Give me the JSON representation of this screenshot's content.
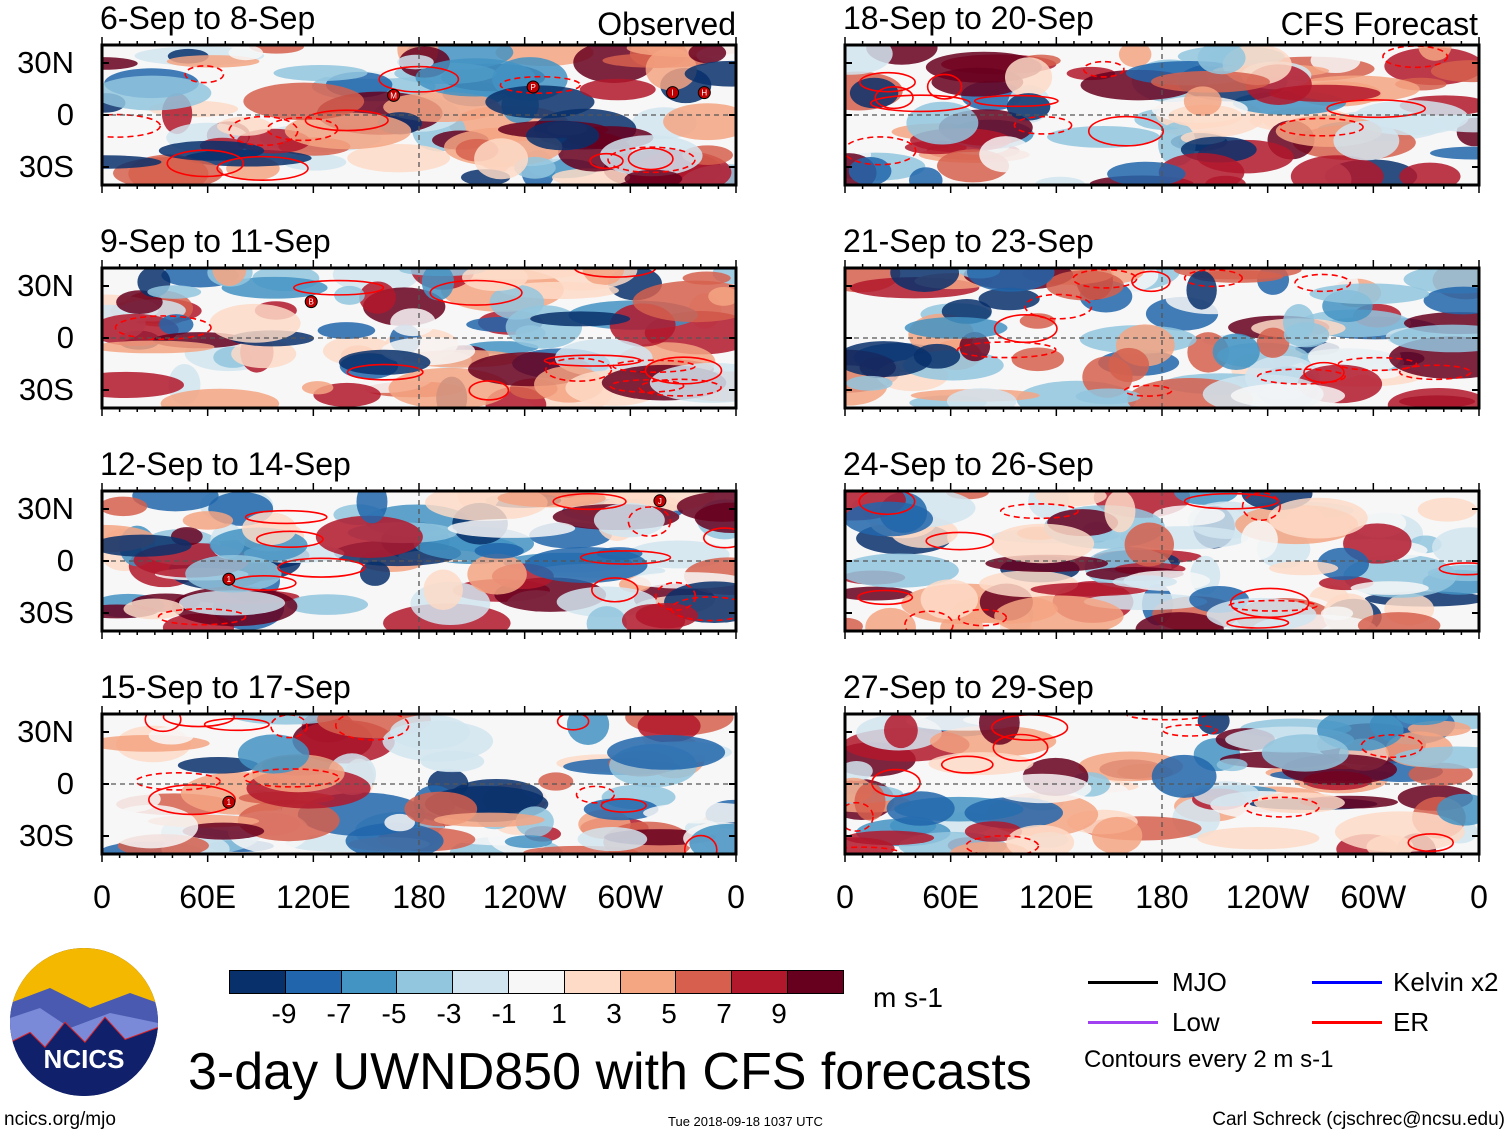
{
  "title": "3-day UWND850 with CFS forecasts",
  "header": {
    "observed_label": "Observed",
    "forecast_label": "CFS Forecast"
  },
  "footer": {
    "url": "ncics.org/mjo",
    "timestamp": "Tue 2018-09-18 1037 UTC",
    "author": "Carl Schreck (cjschrec@ncsu.edu)"
  },
  "logo": {
    "text": "NCICS"
  },
  "colorbar": {
    "units": "m s-1",
    "colors": [
      "#08306b",
      "#2166ac",
      "#4393c3",
      "#92c5de",
      "#d1e5f0",
      "#f7f7f7",
      "#fddbc7",
      "#f4a582",
      "#d6604d",
      "#b2182b",
      "#67001f"
    ],
    "labels": [
      "-9",
      "-7",
      "-5",
      "-3",
      "-1",
      "1",
      "3",
      "5",
      "7",
      "9"
    ]
  },
  "legend": {
    "items": [
      {
        "label": "MJO",
        "color": "#000000"
      },
      {
        "label": "Kelvin x2",
        "color": "#0000ff"
      },
      {
        "label": "Low",
        "color": "#a040f0"
      },
      {
        "label": "ER",
        "color": "#ff0000"
      }
    ],
    "note": "Contours every 2 m s-1"
  },
  "chart_data": {
    "type": "heatmap",
    "variable": "850-hPa zonal wind anomaly (3-day mean)",
    "units": "m s-1",
    "xlim": [
      0,
      360
    ],
    "ylim": [
      -40,
      40
    ],
    "xticks": [
      "0",
      "60E",
      "120E",
      "180",
      "120W",
      "60W",
      "0"
    ],
    "yticks": [
      "30N",
      "0",
      "30S"
    ],
    "panels": [
      {
        "title": "6-Sep to 8-Sep",
        "type": "Observed",
        "storms": [
          "M",
          "P",
          "I",
          "H"
        ]
      },
      {
        "title": "9-Sep to 11-Sep",
        "type": "Observed",
        "storms": [
          "B"
        ]
      },
      {
        "title": "12-Sep to 14-Sep",
        "type": "Observed",
        "storms": [
          "1",
          "J"
        ]
      },
      {
        "title": "15-Sep to 17-Sep",
        "type": "Observed",
        "storms": [
          "1"
        ]
      },
      {
        "title": "18-Sep to 20-Sep",
        "type": "CFS Forecast",
        "storms": []
      },
      {
        "title": "21-Sep to 23-Sep",
        "type": "CFS Forecast",
        "storms": []
      },
      {
        "title": "24-Sep to 26-Sep",
        "type": "CFS Forecast",
        "storms": []
      },
      {
        "title": "27-Sep to 29-Sep",
        "type": "CFS Forecast",
        "storms": []
      }
    ]
  }
}
